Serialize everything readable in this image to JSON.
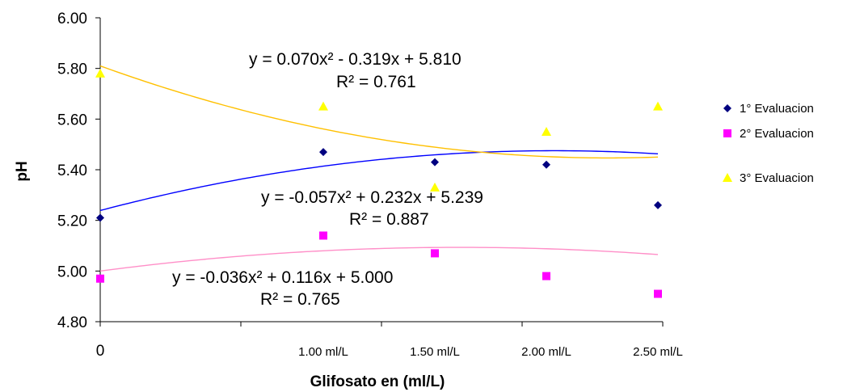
{
  "chart_data": {
    "type": "scatter",
    "title": "",
    "xlabel": "Glifosato en (ml/L)",
    "ylabel": "pH",
    "ylim": [
      4.8,
      6.0
    ],
    "yticks": [
      "4.80",
      "5.00",
      "5.20",
      "5.40",
      "5.60",
      "5.80",
      "6.00"
    ],
    "xlim": [
      0,
      3
    ],
    "x_tick_labels": [
      "0",
      "1.00 ml/L",
      "1.50 ml/L",
      "2.00 ml/L",
      "2.50 ml/L"
    ],
    "grid": false,
    "legend_position": "right",
    "series": [
      {
        "name": "1° Evaluacion",
        "marker": "diamond",
        "color": "#000080",
        "trend_color": "#0000ff",
        "x": [
          0,
          1,
          1.5,
          2,
          2.5
        ],
        "values": [
          5.21,
          5.47,
          5.43,
          5.42,
          5.26
        ],
        "trendline": {
          "a": -0.057,
          "b": 0.232,
          "c": 5.239
        },
        "equation": "y = -0.057x² + 0.232x + 5.239",
        "r2": "R² = 0.887"
      },
      {
        "name": "2° Evaluacion",
        "marker": "square",
        "color": "#ff00ff",
        "trend_color": "#ff8fc8",
        "x": [
          0,
          1,
          1.5,
          2,
          2.5
        ],
        "values": [
          4.97,
          5.14,
          5.07,
          4.98,
          4.91
        ],
        "trendline": {
          "a": -0.036,
          "b": 0.116,
          "c": 5.0
        },
        "equation": "y = -0.036x² + 0.116x + 5.000",
        "r2": "R² = 0.765"
      },
      {
        "name": "3° Evaluacion",
        "marker": "triangle",
        "color": "#ffff00",
        "trend_color": "#ffc000",
        "x": [
          0,
          1,
          1.5,
          2,
          2.5
        ],
        "values": [
          5.78,
          5.65,
          5.33,
          5.55,
          5.65
        ],
        "trendline": {
          "a": 0.07,
          "b": -0.319,
          "c": 5.81
        },
        "equation": "y = 0.070x² - 0.319x + 5.810",
        "r2": "R² = 0.761"
      }
    ]
  }
}
